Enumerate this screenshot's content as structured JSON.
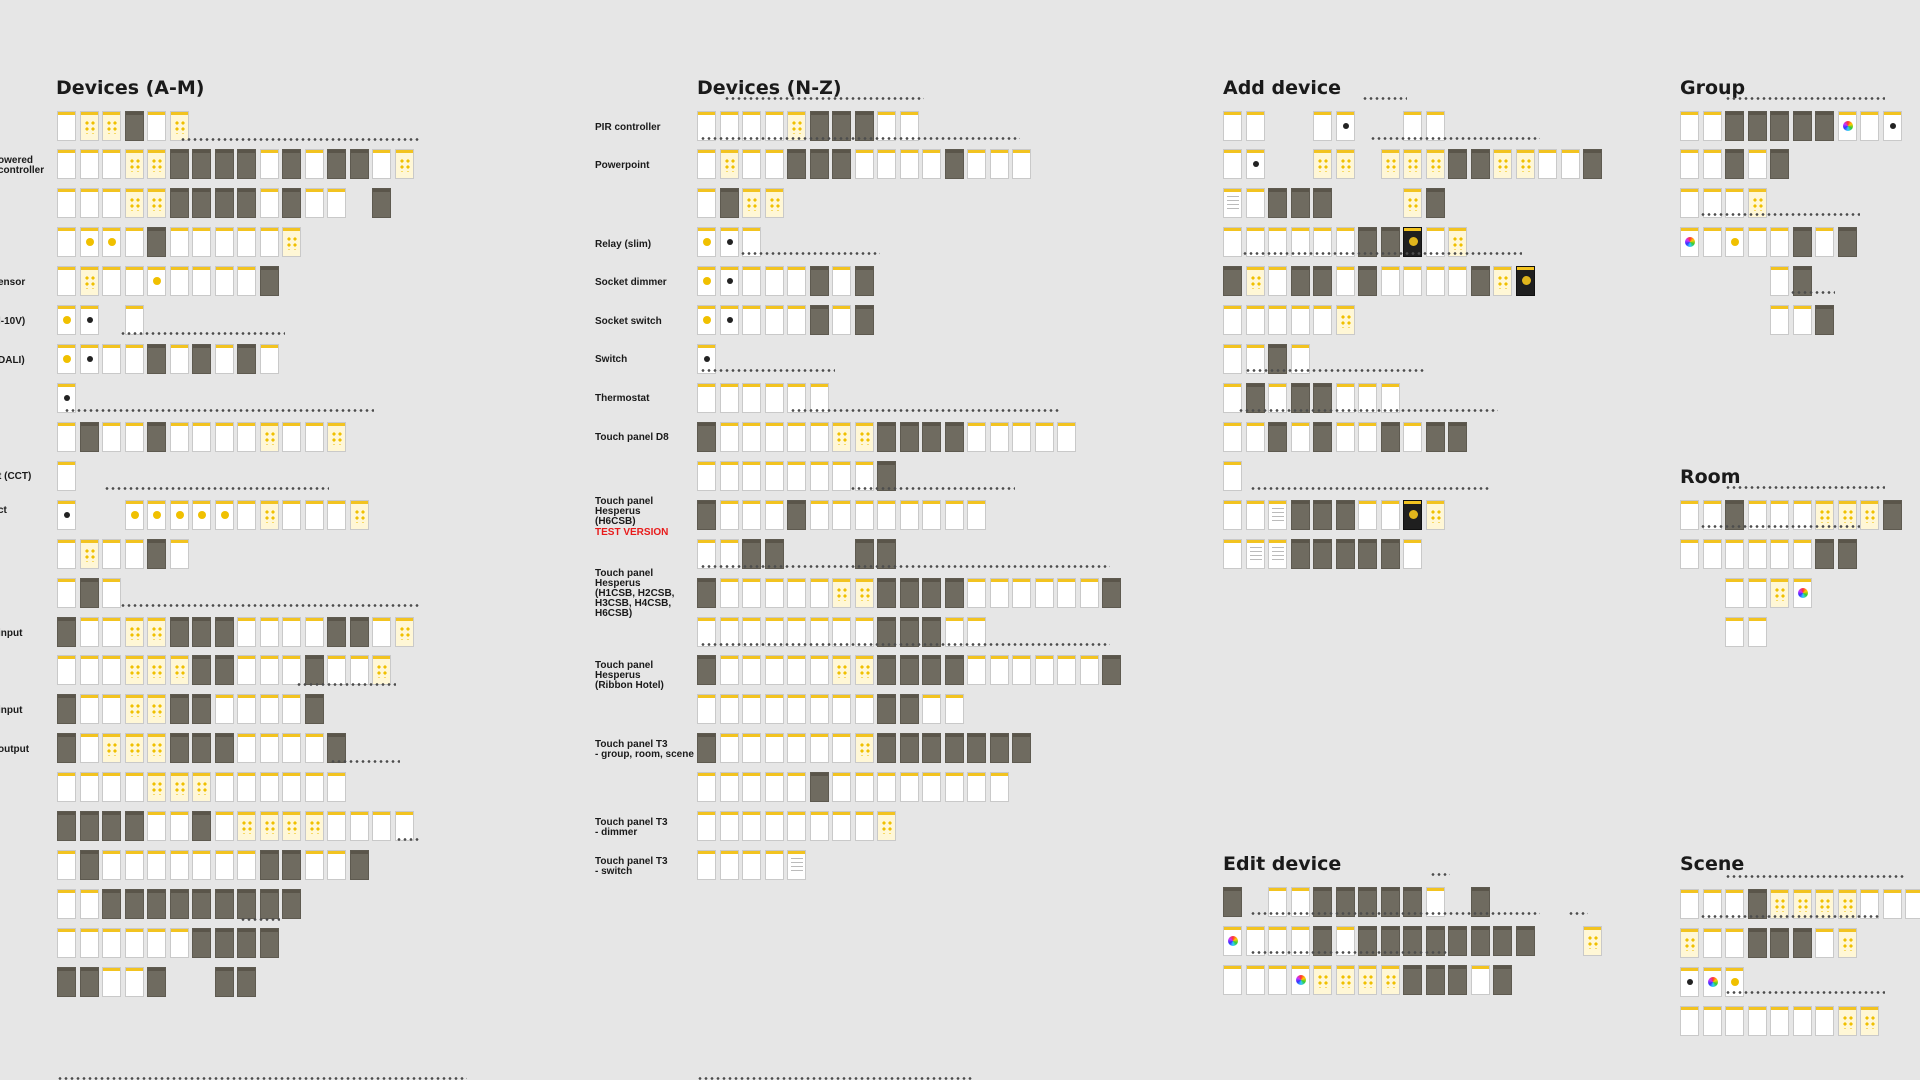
{
  "sections": {
    "devices_am": "Devices (A-M)",
    "devices_nz": "Devices (N-Z)",
    "add_device": "Add device",
    "group": "Group",
    "room": "Room",
    "edit_device": "Edit device",
    "scene": "Scene"
  },
  "labels_am": {
    "powered_controller": "owered\ncontroller",
    "sensor": "ensor",
    "v10": "l-10V)",
    "dali": "DALI)",
    "cct": "t (CCT)",
    "ct": "ct",
    "input1": "input",
    "input2": "input",
    "output": "output"
  },
  "labels_nz": {
    "pir": "PIR controller",
    "powerpoint": "Powerpoint",
    "relay": "Relay (slim)",
    "socket_dimmer": "Socket dimmer",
    "socket_switch": "Socket switch",
    "switch": "Switch",
    "thermostat": "Thermostat",
    "touch_d8": "Touch panel D8",
    "hesperus_h6": "Touch panel\nHesperus\n(H6CSB)",
    "test_version": "TEST VERSION",
    "hesperus_multi": "Touch panel\nHesperus\n(H1CSB, H2CSB,\nH3CSB, H4CSB,\nH6CSB)",
    "hesperus_ribbon": "Touch panel\nHesperus\n(Ribbon Hotel)",
    "t3_group": "Touch panel T3\n- group, room, scene",
    "t3_dimmer": "Touch panel T3\n- dimmer",
    "t3_switch": "Touch panel T3\n- switch"
  },
  "colors": {
    "background": "#e6e6e6",
    "accent_yellow": "#f2c320",
    "dark_screen": "#6f6b60",
    "test_red": "#e81b1b"
  }
}
